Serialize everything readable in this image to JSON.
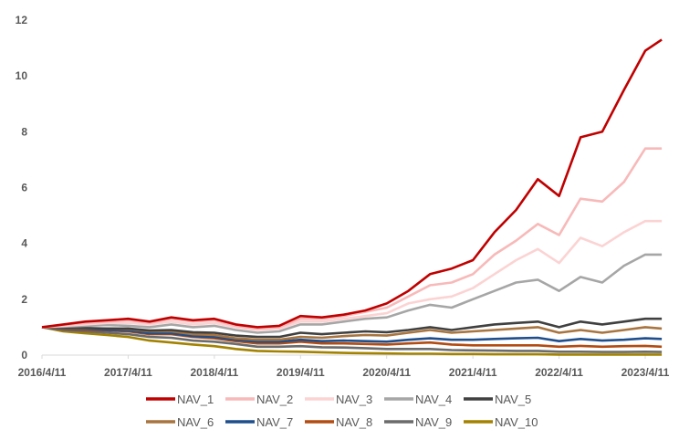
{
  "chart_data": {
    "type": "line",
    "title": "",
    "xlabel": "",
    "ylabel": "",
    "ylim": [
      0,
      12
    ],
    "yticks": [
      "0",
      "2",
      "4",
      "6",
      "8",
      "10",
      "12"
    ],
    "xticks": [
      "2016/4/11",
      "2017/4/11",
      "2018/4/11",
      "2019/4/11",
      "2020/4/11",
      "2021/4/11",
      "2022/4/11",
      "2023/4/11"
    ],
    "grid": false,
    "legend_position": "bottom",
    "x": [
      "2016-04-11",
      "2016-07-11",
      "2016-10-11",
      "2017-01-11",
      "2017-04-11",
      "2017-07-11",
      "2017-10-11",
      "2018-01-11",
      "2018-04-11",
      "2018-07-11",
      "2018-10-11",
      "2019-01-11",
      "2019-04-11",
      "2019-07-11",
      "2019-10-11",
      "2020-01-11",
      "2020-04-11",
      "2020-07-11",
      "2020-10-11",
      "2021-01-11",
      "2021-04-11",
      "2021-07-11",
      "2021-10-11",
      "2022-01-11",
      "2022-04-11",
      "2022-07-11",
      "2022-10-11",
      "2023-01-11",
      "2023-04-11",
      "2023-06-20"
    ],
    "series": [
      {
        "name": "NAV_1",
        "color": "#c00000",
        "values": [
          1.0,
          1.1,
          1.2,
          1.25,
          1.3,
          1.2,
          1.35,
          1.25,
          1.3,
          1.1,
          1.0,
          1.05,
          1.4,
          1.35,
          1.45,
          1.6,
          1.85,
          2.3,
          2.9,
          3.1,
          3.4,
          4.4,
          5.2,
          6.3,
          5.7,
          7.8,
          8.0,
          9.5,
          10.9,
          11.3
        ]
      },
      {
        "name": "NAV_2",
        "color": "#f8b9b9",
        "values": [
          1.0,
          1.08,
          1.15,
          1.2,
          1.25,
          1.15,
          1.3,
          1.2,
          1.25,
          1.05,
          0.95,
          1.0,
          1.3,
          1.3,
          1.4,
          1.55,
          1.7,
          2.1,
          2.5,
          2.6,
          2.9,
          3.6,
          4.1,
          4.7,
          4.3,
          5.6,
          5.5,
          6.2,
          7.4,
          7.4
        ]
      },
      {
        "name": "NAV_3",
        "color": "#fcd3d3",
        "values": [
          1.0,
          1.05,
          1.1,
          1.15,
          1.15,
          1.1,
          1.2,
          1.1,
          1.15,
          1.0,
          0.9,
          0.95,
          1.2,
          1.2,
          1.3,
          1.4,
          1.5,
          1.85,
          2.0,
          2.1,
          2.4,
          2.9,
          3.4,
          3.8,
          3.3,
          4.2,
          3.9,
          4.4,
          4.8,
          4.8
        ]
      },
      {
        "name": "NAV_4",
        "color": "#a6a6a6",
        "values": [
          1.0,
          1.02,
          1.05,
          1.08,
          1.05,
          1.0,
          1.1,
          1.0,
          1.05,
          0.9,
          0.8,
          0.85,
          1.1,
          1.1,
          1.2,
          1.3,
          1.35,
          1.6,
          1.8,
          1.7,
          2.0,
          2.3,
          2.6,
          2.7,
          2.3,
          2.8,
          2.6,
          3.2,
          3.6,
          3.6
        ]
      },
      {
        "name": "NAV_5",
        "color": "#404040",
        "values": [
          1.0,
          0.98,
          0.97,
          0.95,
          0.95,
          0.88,
          0.9,
          0.82,
          0.8,
          0.7,
          0.65,
          0.65,
          0.8,
          0.75,
          0.8,
          0.85,
          0.82,
          0.9,
          1.0,
          0.9,
          1.0,
          1.1,
          1.15,
          1.2,
          1.0,
          1.2,
          1.1,
          1.2,
          1.3,
          1.3
        ]
      },
      {
        "name": "NAV_6",
        "color": "#a8743f",
        "values": [
          1.0,
          0.97,
          0.95,
          0.95,
          0.93,
          0.85,
          0.85,
          0.75,
          0.72,
          0.6,
          0.55,
          0.55,
          0.65,
          0.62,
          0.68,
          0.72,
          0.7,
          0.8,
          0.9,
          0.8,
          0.85,
          0.9,
          0.95,
          1.0,
          0.8,
          0.9,
          0.8,
          0.9,
          1.0,
          0.95
        ]
      },
      {
        "name": "NAV_7",
        "color": "#1f4e8c",
        "values": [
          1.0,
          0.95,
          0.93,
          0.9,
          0.88,
          0.78,
          0.78,
          0.68,
          0.65,
          0.55,
          0.48,
          0.48,
          0.55,
          0.5,
          0.52,
          0.5,
          0.48,
          0.55,
          0.6,
          0.55,
          0.55,
          0.58,
          0.6,
          0.62,
          0.5,
          0.58,
          0.52,
          0.55,
          0.6,
          0.58
        ]
      },
      {
        "name": "NAV_8",
        "color": "#b24c12",
        "values": [
          1.0,
          0.93,
          0.9,
          0.88,
          0.85,
          0.75,
          0.75,
          0.65,
          0.6,
          0.5,
          0.42,
          0.42,
          0.48,
          0.42,
          0.42,
          0.4,
          0.38,
          0.42,
          0.45,
          0.38,
          0.35,
          0.35,
          0.35,
          0.35,
          0.3,
          0.33,
          0.3,
          0.32,
          0.33,
          0.3
        ]
      },
      {
        "name": "NAV_9",
        "color": "#6b6b6b",
        "values": [
          1.0,
          0.9,
          0.85,
          0.8,
          0.75,
          0.65,
          0.62,
          0.52,
          0.48,
          0.4,
          0.3,
          0.3,
          0.32,
          0.28,
          0.27,
          0.25,
          0.22,
          0.22,
          0.22,
          0.18,
          0.17,
          0.16,
          0.15,
          0.15,
          0.12,
          0.12,
          0.11,
          0.11,
          0.12,
          0.11
        ]
      },
      {
        "name": "NAV_10",
        "color": "#a38200",
        "values": [
          1.0,
          0.85,
          0.78,
          0.72,
          0.65,
          0.52,
          0.45,
          0.38,
          0.32,
          0.22,
          0.15,
          0.13,
          0.12,
          0.1,
          0.08,
          0.07,
          0.06,
          0.05,
          0.05,
          0.04,
          0.04,
          0.03,
          0.03,
          0.03,
          0.02,
          0.02,
          0.02,
          0.02,
          0.02,
          0.02
        ]
      }
    ]
  }
}
